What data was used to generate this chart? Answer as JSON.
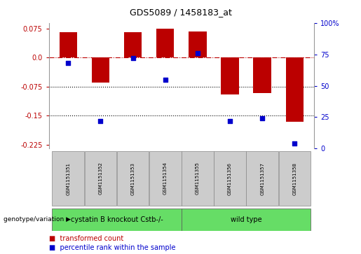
{
  "title": "GDS5089 / 1458183_at",
  "samples": [
    "GSM1151351",
    "GSM1151352",
    "GSM1151353",
    "GSM1151354",
    "GSM1151355",
    "GSM1151356",
    "GSM1151357",
    "GSM1151358"
  ],
  "transformed_count": [
    0.065,
    -0.065,
    0.065,
    0.075,
    0.068,
    -0.095,
    -0.092,
    -0.165
  ],
  "percentile_rank": [
    68,
    22,
    72,
    55,
    76,
    22,
    24,
    4
  ],
  "bar_color": "#bb0000",
  "dot_color": "#0000cc",
  "ylim_left": [
    -0.235,
    0.09
  ],
  "ylim_right": [
    0,
    100
  ],
  "yticks_left": [
    0.075,
    0.0,
    -0.075,
    -0.15,
    -0.225
  ],
  "yticks_right": [
    100,
    75,
    50,
    25,
    0
  ],
  "hline_y": 0.0,
  "dotted_lines": [
    -0.075,
    -0.15
  ],
  "group1_label": "cystatin B knockout Cstb-/-",
  "group2_label": "wild type",
  "group1_color": "#66dd66",
  "group2_color": "#66dd66",
  "label_row": "genotype/variation",
  "legend_bar_label": "transformed count",
  "legend_dot_label": "percentile rank within the sample",
  "bar_width": 0.55,
  "bg_color": "#ffffff",
  "grid_bg": "#ffffff",
  "tick_bg": "#cccccc",
  "title_fontsize": 9,
  "axis_fontsize": 7,
  "sample_fontsize": 5,
  "group_fontsize": 7,
  "legend_fontsize": 7
}
